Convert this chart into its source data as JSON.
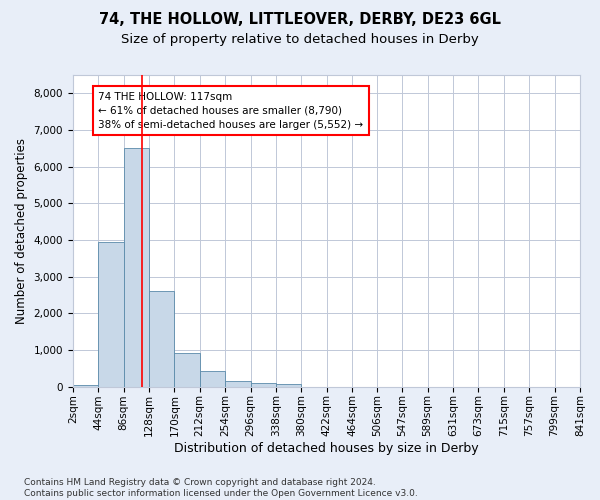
{
  "title_line1": "74, THE HOLLOW, LITTLEOVER, DERBY, DE23 6GL",
  "title_line2": "Size of property relative to detached houses in Derby",
  "xlabel": "Distribution of detached houses by size in Derby",
  "ylabel": "Number of detached properties",
  "footnote": "Contains HM Land Registry data © Crown copyright and database right 2024.\nContains public sector information licensed under the Open Government Licence v3.0.",
  "bin_edges": [
    2,
    44,
    86,
    128,
    170,
    212,
    254,
    296,
    338,
    380,
    422,
    464,
    506,
    547,
    589,
    631,
    673,
    715,
    757,
    799,
    841
  ],
  "bar_heights": [
    50,
    3950,
    6500,
    2600,
    930,
    430,
    150,
    90,
    70,
    0,
    0,
    0,
    0,
    0,
    0,
    0,
    0,
    0,
    0,
    0
  ],
  "bar_color": "#c8d8e8",
  "bar_edge_color": "#5a8aaa",
  "property_size": 117,
  "annotation_text": "74 THE HOLLOW: 117sqm\n← 61% of detached houses are smaller (8,790)\n38% of semi-detached houses are larger (5,552) →",
  "annotation_box_color": "white",
  "annotation_box_edge_color": "red",
  "vline_color": "red",
  "vline_x": 117,
  "ylim": [
    0,
    8500
  ],
  "yticks": [
    0,
    1000,
    2000,
    3000,
    4000,
    5000,
    6000,
    7000,
    8000
  ],
  "bg_color": "#e8eef8",
  "plot_bg_color": "white",
  "grid_color": "#c0c8d8",
  "title_fontsize": 10.5,
  "subtitle_fontsize": 9.5,
  "xlabel_fontsize": 9,
  "ylabel_fontsize": 8.5,
  "tick_fontsize": 7.5,
  "annotation_fontsize": 7.5,
  "footnote_fontsize": 6.5
}
